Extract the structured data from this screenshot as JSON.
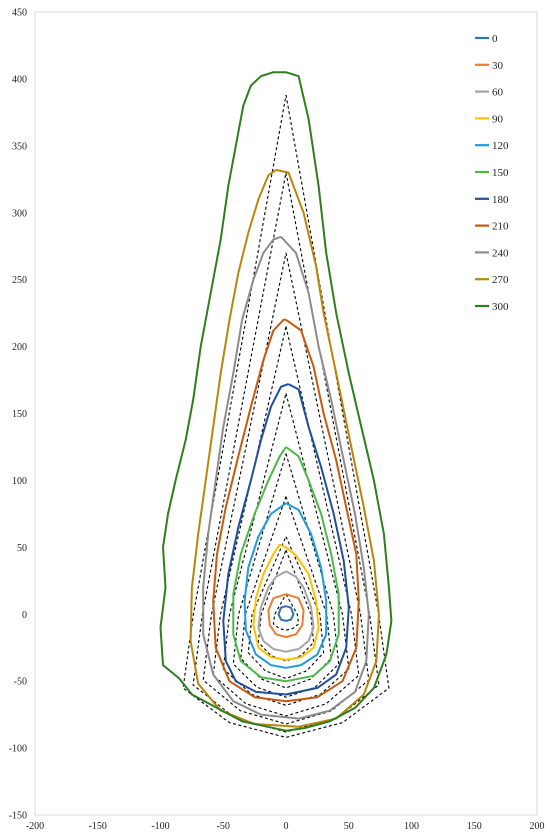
{
  "chart_data": {
    "type": "line",
    "title": "",
    "xlabel": "",
    "ylabel": "",
    "xlim": [
      -200,
      200
    ],
    "ylim": [
      -150,
      450
    ],
    "x_ticks": [
      "-200",
      "-150",
      "-100",
      "-50",
      "0",
      "50",
      "100",
      "150",
      "200"
    ],
    "y_ticks": [
      "-150",
      "-100",
      "-50",
      "0",
      "50",
      "100",
      "150",
      "200",
      "250",
      "300",
      "350",
      "400",
      "450"
    ],
    "grid": false,
    "legend_position": "top-right",
    "dashed_contours": {
      "color": "#000000",
      "style": "dashed",
      "contours": [
        {
          "tip": 15,
          "bottom": -12,
          "half_width": 10
        },
        {
          "tip": 48,
          "bottom": -35,
          "half_width": 22
        },
        {
          "tip": 58,
          "bottom": -48,
          "half_width": 30
        },
        {
          "tip": 88,
          "bottom": -55,
          "half_width": 36
        },
        {
          "tip": 120,
          "bottom": -62,
          "half_width": 42
        },
        {
          "tip": 165,
          "bottom": -68,
          "half_width": 50
        },
        {
          "tip": 215,
          "bottom": -76,
          "half_width": 58
        },
        {
          "tip": 270,
          "bottom": -82,
          "half_width": 66
        },
        {
          "tip": 330,
          "bottom": -88,
          "half_width": 74
        },
        {
          "tip": 388,
          "bottom": -92,
          "half_width": 82
        }
      ]
    },
    "series": [
      {
        "name": "0",
        "color": "#2E75B6",
        "x": [
          0,
          4,
          6,
          4,
          0,
          -4,
          -6,
          -4,
          0
        ],
        "y": [
          6,
          5,
          0,
          -4,
          -5,
          -4,
          0,
          5,
          6
        ]
      },
      {
        "name": "30",
        "color": "#ED7D31",
        "x": [
          0,
          10,
          14,
          13,
          8,
          0,
          -8,
          -13,
          -14,
          -10,
          0
        ],
        "y": [
          15,
          12,
          3,
          -8,
          -15,
          -17,
          -15,
          -8,
          3,
          12,
          15
        ]
      },
      {
        "name": "60",
        "color": "#A5A5A5",
        "x": [
          0,
          8,
          14,
          20,
          22,
          18,
          10,
          0,
          -10,
          -18,
          -22,
          -20,
          -14,
          -8,
          0
        ],
        "y": [
          32,
          28,
          20,
          5,
          -10,
          -20,
          -26,
          -28,
          -26,
          -20,
          -10,
          5,
          20,
          28,
          32
        ]
      },
      {
        "name": "90",
        "color": "#FFC000",
        "x": [
          0,
          8,
          18,
          24,
          26,
          22,
          12,
          0,
          -12,
          -22,
          -26,
          -24,
          -18,
          -10,
          -5,
          0
        ],
        "y": [
          50,
          44,
          30,
          10,
          -10,
          -25,
          -32,
          -34,
          -32,
          -25,
          -8,
          12,
          30,
          45,
          52,
          50
        ]
      },
      {
        "name": "120",
        "color": "#1F9BDE",
        "x": [
          0,
          10,
          20,
          28,
          32,
          32,
          25,
          12,
          0,
          -12,
          -24,
          -32,
          -33,
          -30,
          -22,
          -12,
          0
        ],
        "y": [
          83,
          78,
          60,
          35,
          10,
          -15,
          -30,
          -38,
          -40,
          -38,
          -30,
          -12,
          10,
          35,
          58,
          75,
          83
        ]
      },
      {
        "name": "150",
        "color": "#4CB848",
        "x": [
          0,
          10,
          18,
          28,
          36,
          42,
          42,
          35,
          22,
          0,
          -20,
          -36,
          -42,
          -42,
          -36,
          -25,
          -14,
          -5,
          0
        ],
        "y": [
          125,
          118,
          100,
          75,
          45,
          15,
          -15,
          -35,
          -46,
          -50,
          -47,
          -35,
          -15,
          15,
          45,
          75,
          100,
          118,
          125
        ]
      },
      {
        "name": "180",
        "color": "#1F4E9B",
        "x": [
          2,
          10,
          18,
          28,
          38,
          46,
          50,
          48,
          40,
          25,
          0,
          -24,
          -40,
          -48,
          -50,
          -46,
          -38,
          -28,
          -20,
          -12,
          -4,
          2
        ],
        "y": [
          172,
          168,
          140,
          110,
          75,
          40,
          5,
          -25,
          -45,
          -55,
          -60,
          -58,
          -50,
          -35,
          -5,
          30,
          65,
          100,
          130,
          155,
          170,
          172
        ]
      },
      {
        "name": "210",
        "color": "#C55A11",
        "x": [
          0,
          12,
          22,
          30,
          40,
          48,
          56,
          58,
          56,
          45,
          25,
          0,
          -25,
          -45,
          -56,
          -58,
          -55,
          -48,
          -38,
          -28,
          -18,
          -10,
          -2,
          0
        ],
        "y": [
          220,
          212,
          185,
          150,
          115,
          80,
          45,
          10,
          -25,
          -50,
          -62,
          -65,
          -62,
          -50,
          -25,
          10,
          45,
          80,
          118,
          155,
          190,
          212,
          220,
          220
        ]
      },
      {
        "name": "240",
        "color": "#8C8C8C",
        "x": [
          -4,
          8,
          18,
          26,
          36,
          46,
          55,
          62,
          66,
          64,
          55,
          35,
          10,
          -20,
          -42,
          -58,
          -66,
          -66,
          -62,
          -56,
          -50,
          -42,
          -35,
          -26,
          -18,
          -10,
          -4
        ],
        "y": [
          282,
          270,
          240,
          200,
          160,
          115,
          75,
          35,
          0,
          -35,
          -58,
          -72,
          -78,
          -75,
          -65,
          -45,
          -15,
          20,
          60,
          100,
          140,
          180,
          220,
          250,
          270,
          280,
          282
        ]
      },
      {
        "name": "270",
        "color": "#B8860B",
        "x": [
          -8,
          2,
          14,
          24,
          30,
          40,
          52,
          62,
          70,
          74,
          72,
          62,
          40,
          10,
          -25,
          -52,
          -70,
          -76,
          -75,
          -70,
          -64,
          -58,
          -52,
          -45,
          -38,
          -30,
          -22,
          -14,
          -8
        ],
        "y": [
          332,
          330,
          300,
          260,
          225,
          180,
          125,
          80,
          40,
          0,
          -35,
          -60,
          -78,
          -84,
          -82,
          -72,
          -52,
          -20,
          20,
          60,
          100,
          140,
          180,
          220,
          255,
          285,
          310,
          328,
          332
        ]
      },
      {
        "name": "300",
        "color": "#2E7D1F",
        "x": [
          0,
          10,
          18,
          26,
          32,
          40,
          50,
          60,
          70,
          78,
          82,
          84,
          80,
          70,
          55,
          35,
          15,
          0,
          -15,
          -35,
          -55,
          -75,
          -85,
          -98,
          -100,
          -96,
          -98,
          -94,
          -88,
          -80,
          -74,
          -68,
          -60,
          -52,
          -46,
          -40,
          -34,
          -28,
          -20,
          -10,
          0
        ],
        "y": [
          405,
          402,
          370,
          320,
          270,
          225,
          180,
          140,
          100,
          60,
          20,
          -5,
          -30,
          -55,
          -70,
          -80,
          -85,
          -87,
          -84,
          -80,
          -70,
          -60,
          -48,
          -38,
          -10,
          20,
          50,
          75,
          100,
          130,
          160,
          200,
          240,
          280,
          320,
          350,
          380,
          395,
          402,
          405,
          405
        ]
      }
    ]
  }
}
